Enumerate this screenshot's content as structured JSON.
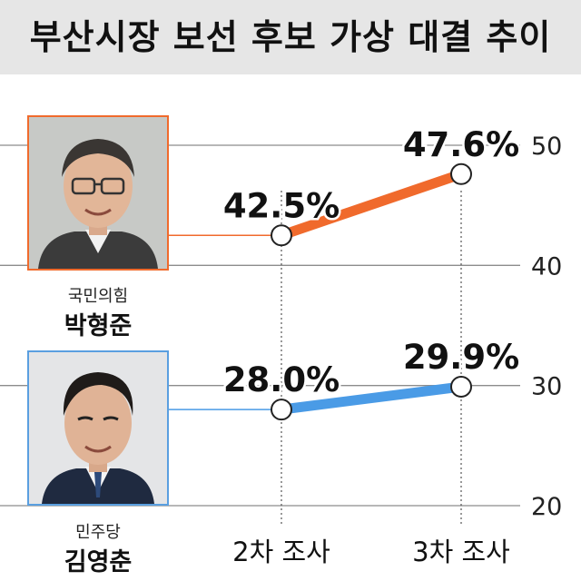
{
  "title": "부산시장 보선 후보 가상 대결 추이",
  "candidates": [
    {
      "party": "국민의힘",
      "name": "박형준"
    },
    {
      "party": "민주당",
      "name": "김영춘"
    }
  ],
  "colors": {
    "orange": "#f06a2c",
    "blue": "#4a9be6",
    "grid": "#8c8c8c"
  },
  "chart_data": {
    "type": "line",
    "categories": [
      "2차 조사",
      "3차 조사"
    ],
    "series": [
      {
        "values": [
          42.5,
          47.6
        ],
        "labels": [
          "42.5%",
          "47.6%"
        ],
        "color": "#f06a2c"
      },
      {
        "values": [
          28.0,
          29.9
        ],
        "labels": [
          "28.0%",
          "29.9%"
        ],
        "color": "#4a9be6"
      }
    ],
    "yticks": [
      50,
      40,
      30,
      20
    ],
    "ylim": [
      20,
      50
    ],
    "grid": true
  }
}
